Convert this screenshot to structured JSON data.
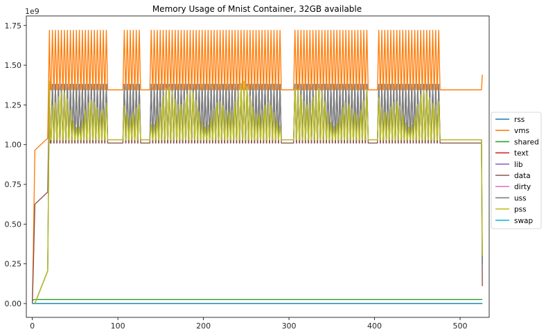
{
  "chart_data": {
    "type": "line",
    "title": "Memory Usage of Mnist Container, 32GB available",
    "xlabel": "",
    "ylabel": "",
    "y_offset_label": "1e9",
    "xlim": [
      -7,
      534
    ],
    "ylim": [
      -0.087,
      1.81
    ],
    "x_ticks": [
      0,
      100,
      200,
      300,
      400,
      500
    ],
    "y_ticks": [
      0.0,
      0.25,
      0.5,
      0.75,
      1.0,
      1.25,
      1.5,
      1.75
    ],
    "y_tick_labels": [
      "0.00",
      "0.25",
      "0.50",
      "0.75",
      "1.00",
      "1.25",
      "1.50",
      "1.75"
    ],
    "legend_position": "center-right",
    "grid": false,
    "x_end": 526,
    "burst_regions": [
      [
        18,
        88
      ],
      [
        105,
        127
      ],
      [
        138,
        290
      ],
      [
        305,
        393
      ],
      [
        402,
        476
      ]
    ],
    "series": [
      {
        "name": "rss",
        "color": "#1f77b4",
        "level": 1.03,
        "base": 0.0,
        "ramp_end": 20,
        "spike": 1.38,
        "spike_step": 3.5,
        "end_value": 0.25
      },
      {
        "name": "vms",
        "color": "#ff7f0e",
        "level": 1.345,
        "base": 0.965,
        "ramp_end": 20,
        "spike": 1.72,
        "spike_step": 3.5,
        "end_value": 1.44
      },
      {
        "name": "shared",
        "color": "#2ca02c",
        "level": 0.025,
        "base": 0.02
      },
      {
        "name": "text",
        "color": "#d62728",
        "level": 0.001
      },
      {
        "name": "lib",
        "color": "#9467bd",
        "level": 0.0
      },
      {
        "name": "data",
        "color": "#8c564b",
        "level": 1.01,
        "base": 0.625,
        "ramp_end": 20,
        "spike": 1.38,
        "spike_step": 3.5,
        "end_value": 0.11
      },
      {
        "name": "dirty",
        "color": "#e377c2",
        "level": 0.0
      },
      {
        "name": "uss",
        "color": "#7f7f7f",
        "level": 1.03,
        "base": 0.0,
        "ramp_end": 20,
        "spike": 1.38,
        "spike_step": 3.5,
        "end_value": 0.22
      },
      {
        "name": "pss",
        "color": "#bcbd22",
        "level": 1.03,
        "base": 0.0,
        "ramp_end": 20,
        "spike_min": 1.1,
        "spike_max": 1.4,
        "spike_step": 3.5,
        "end_value": 0.3
      },
      {
        "name": "swap",
        "color": "#17becf",
        "level": 0.0
      }
    ]
  }
}
